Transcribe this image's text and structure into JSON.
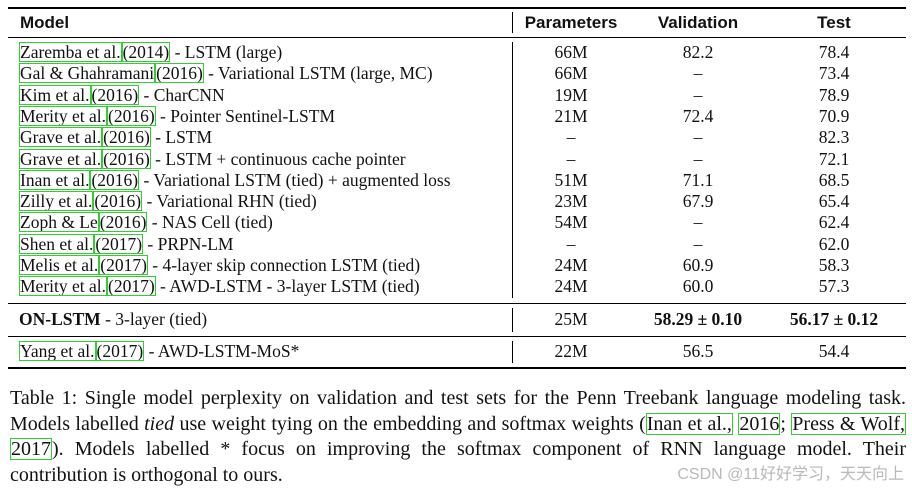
{
  "table": {
    "headers": {
      "model": "Model",
      "params": "Parameters",
      "val": "Validation",
      "test": "Test"
    },
    "rows": [
      {
        "author": "Zaremba et al.",
        "year": "(2014)",
        "desc": " - LSTM (large)",
        "params": "66M",
        "val": "82.2",
        "test": "78.4"
      },
      {
        "author": "Gal & Ghahramani",
        "year": "(2016)",
        "desc": " - Variational LSTM (large, MC)",
        "params": "66M",
        "val": "–",
        "test": "73.4"
      },
      {
        "author": "Kim et al.",
        "year": "(2016)",
        "desc": " - CharCNN",
        "params": "19M",
        "val": "–",
        "test": "78.9"
      },
      {
        "author": "Merity et al.",
        "year": "(2016)",
        "desc": " - Pointer Sentinel-LSTM",
        "params": "21M",
        "val": "72.4",
        "test": "70.9"
      },
      {
        "author": "Grave et al.",
        "year": "(2016)",
        "desc": " - LSTM",
        "params": "–",
        "val": "–",
        "test": "82.3"
      },
      {
        "author": "Grave et al.",
        "year": "(2016)",
        "desc": " - LSTM + continuous cache pointer",
        "params": "–",
        "val": "–",
        "test": "72.1"
      },
      {
        "author": "Inan et al.",
        "year": "(2016)",
        "desc": " - Variational LSTM (tied) + augmented loss",
        "params": "51M",
        "val": "71.1",
        "test": "68.5"
      },
      {
        "author": "Zilly et al.",
        "year": "(2016)",
        "desc": " - Variational RHN (tied)",
        "params": "23M",
        "val": "67.9",
        "test": "65.4"
      },
      {
        "author": "Zoph & Le",
        "year": "(2016)",
        "desc": " - NAS Cell (tied)",
        "params": "54M",
        "val": "–",
        "test": "62.4"
      },
      {
        "author": "Shen et al.",
        "year": "(2017)",
        "desc": " - PRPN-LM",
        "params": "–",
        "val": "–",
        "test": "62.0"
      },
      {
        "author": "Melis et al.",
        "year": "(2017)",
        "desc": " - 4-layer skip connection LSTM (tied)",
        "params": "24M",
        "val": "60.9",
        "test": "58.3"
      },
      {
        "author": "Merity et al.",
        "year": "(2017)",
        "desc": " - AWD-LSTM - 3-layer LSTM (tied)",
        "params": "24M",
        "val": "60.0",
        "test": "57.3"
      }
    ],
    "ours": {
      "name": "ON-LSTM",
      "desc": " - 3-layer (tied)",
      "params": "25M",
      "val": "58.29 ± 0.10",
      "test": "56.17 ± 0.12"
    },
    "last": {
      "author": "Yang et al.",
      "year": "(2017)",
      "desc": " - AWD-LSTM-MoS*",
      "params": "22M",
      "val": "56.5",
      "test": "54.4"
    }
  },
  "caption": {
    "p1": "Table 1: Single model perplexity on validation and test sets for the Penn Treebank language modeling task. Models labelled ",
    "tied": "tied",
    "p2": " use weight tying on the embedding and softmax weights (",
    "cite1": "Inan et al.,",
    "cite1_year": "2016",
    "sep": "; ",
    "cite2": "Press & Wolf,",
    "cite2_year": "2017",
    "p3": "). Models labelled * focus on improving the softmax component of RNN language model. Their contribution is orthogonal to ours."
  },
  "watermark": "CSDN @11好好学习，天天向上"
}
